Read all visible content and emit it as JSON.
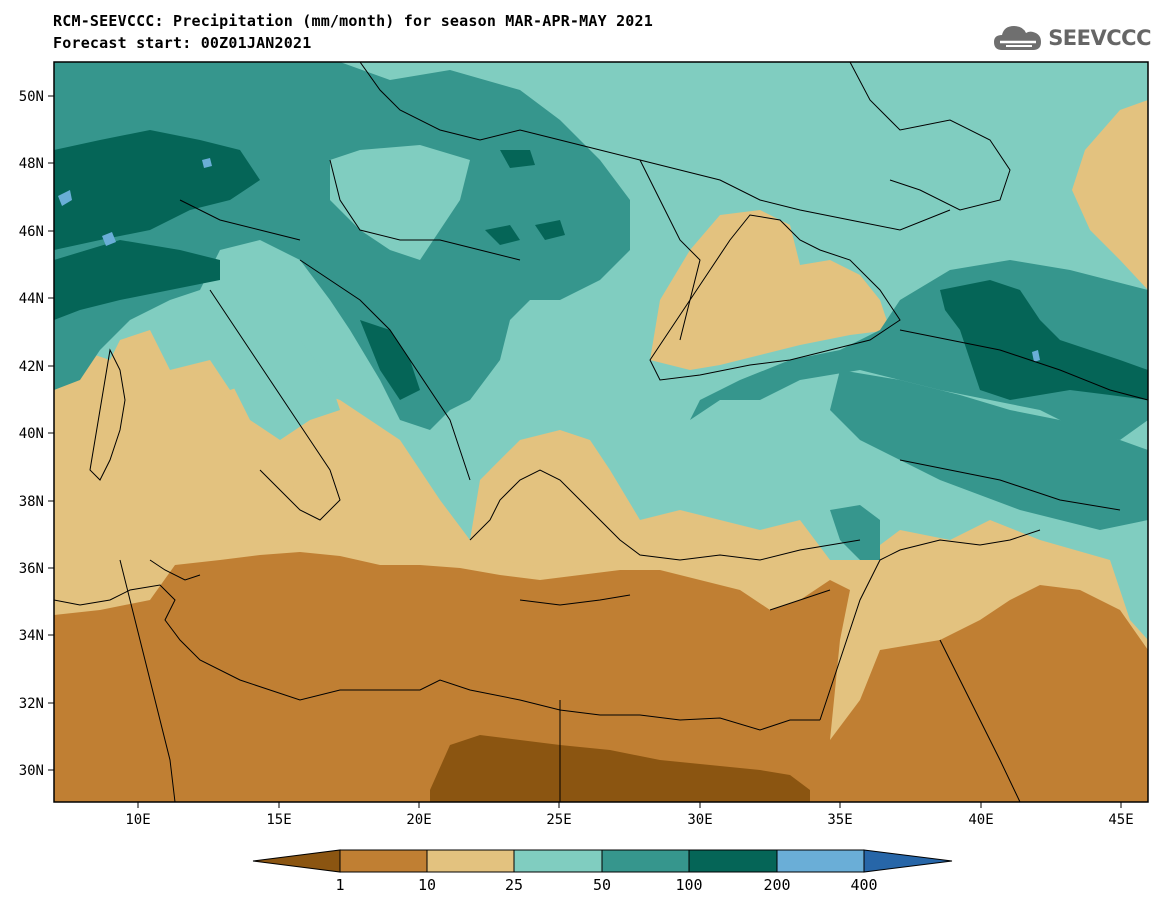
{
  "header": {
    "title_line1": "RCM-SEEVCCC: Precipitation (mm/month) for season MAR-APR-MAY 2021",
    "title_line2": "Forecast start: 00Z01JAN2021"
  },
  "logo": {
    "text": "SEEVCCC",
    "icon": "cloud-icon"
  },
  "map": {
    "lat_labels": [
      "50N",
      "48N",
      "46N",
      "44N",
      "42N",
      "40N",
      "38N",
      "36N",
      "34N",
      "32N",
      "30N"
    ],
    "lon_labels": [
      "10E",
      "15E",
      "20E",
      "25E",
      "30E",
      "35E",
      "40E",
      "45E"
    ],
    "region": "Southeastern Europe and Eastern Mediterranean",
    "lon_range": [
      7,
      46
    ],
    "lat_range": [
      29,
      51
    ]
  },
  "colorbar": {
    "labels": [
      "1",
      "10",
      "25",
      "50",
      "100",
      "200",
      "400"
    ],
    "colors": [
      "#8b5511",
      "#c07f33",
      "#e3c27f",
      "#80cdc0",
      "#36968d",
      "#056557",
      "#6aaed7",
      "#2766a8"
    ]
  }
}
